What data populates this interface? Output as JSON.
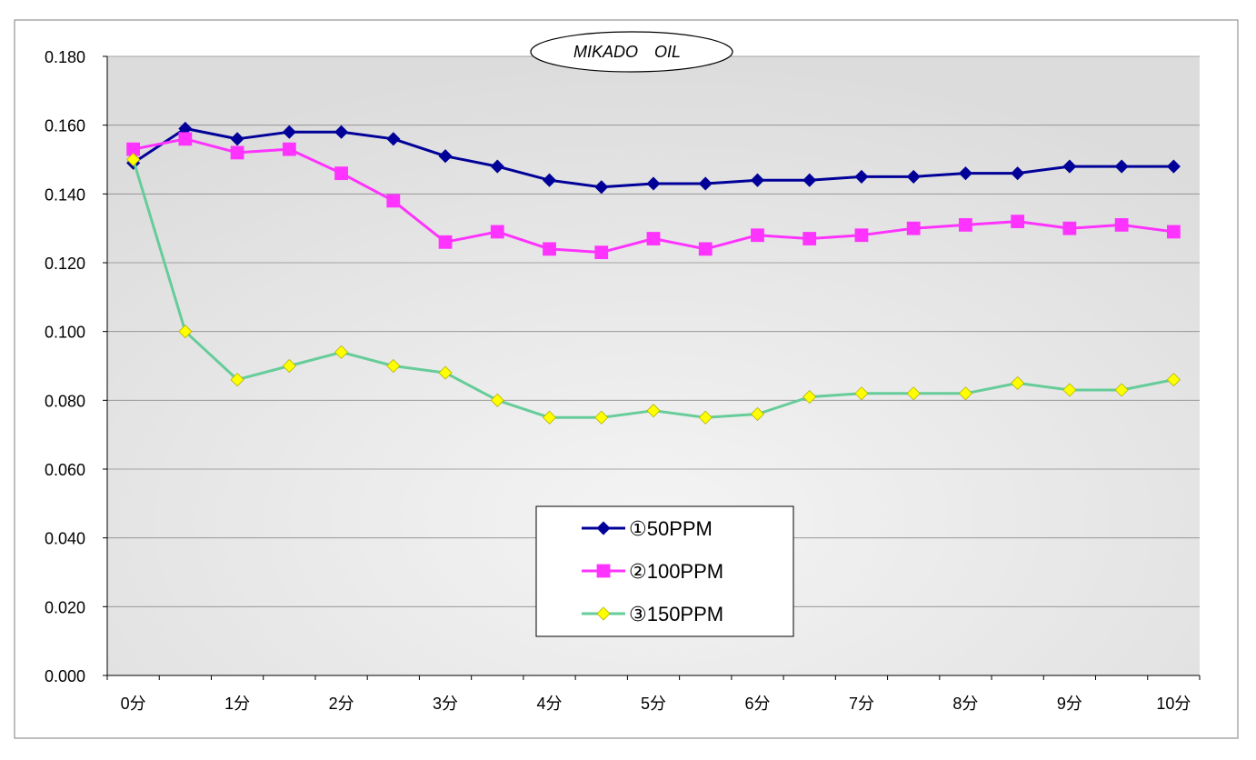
{
  "chart_data": {
    "type": "line",
    "title": "MIKADO　OIL",
    "xlabel": "",
    "ylabel": "",
    "ylim": [
      0,
      0.18
    ],
    "yticks": [
      "0.000",
      "0.020",
      "0.040",
      "0.060",
      "0.080",
      "0.100",
      "0.120",
      "0.140",
      "0.160",
      "0.180"
    ],
    "categories": [
      "0分",
      "",
      "1分",
      "",
      "2分",
      "",
      "3分",
      "",
      "4分",
      "",
      "5分",
      "",
      "6分",
      "",
      "7分",
      "",
      "8分",
      "",
      "9分",
      "",
      "10分"
    ],
    "grid": true,
    "legend_position": "bottom-center",
    "series": [
      {
        "name": "①50PPM",
        "color": "#000099",
        "marker": "diamond",
        "values": [
          0.149,
          0.159,
          0.156,
          0.158,
          0.158,
          0.156,
          0.151,
          0.148,
          0.144,
          0.142,
          0.143,
          0.143,
          0.144,
          0.144,
          0.145,
          0.145,
          0.146,
          0.146,
          0.148,
          0.148,
          0.148
        ]
      },
      {
        "name": "②100PPM",
        "color": "#FF33FF",
        "marker": "square",
        "values": [
          0.153,
          0.156,
          0.152,
          0.153,
          0.146,
          0.138,
          0.126,
          0.129,
          0.124,
          0.123,
          0.127,
          0.124,
          0.128,
          0.127,
          0.128,
          0.13,
          0.131,
          0.132,
          0.13,
          0.131,
          0.129
        ]
      },
      {
        "name": "③150PPM",
        "color": "#66CC99",
        "marker_color": "#FFFF00",
        "marker": "diamond",
        "values": [
          0.15,
          0.1,
          0.086,
          0.09,
          0.094,
          0.09,
          0.088,
          0.08,
          0.075,
          0.075,
          0.077,
          0.075,
          0.076,
          0.081,
          0.082,
          0.082,
          0.082,
          0.085,
          0.083,
          0.083,
          0.086
        ]
      }
    ]
  }
}
